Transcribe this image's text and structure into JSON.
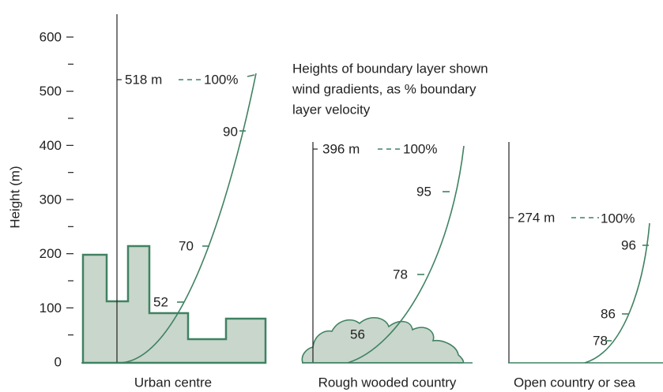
{
  "y_axis": {
    "title": "Height (m)",
    "ticks": [
      "600",
      "500",
      "400",
      "300",
      "200",
      "100",
      "0"
    ]
  },
  "note": [
    "Heights of boundary layer shown",
    "wind gradients, as % boundary",
    "layer velocity"
  ],
  "panels": [
    {
      "label": "Urban centre",
      "boundary_height": "518 m",
      "top_percent": "100%",
      "profile_labels": [
        "90",
        "70",
        "52"
      ]
    },
    {
      "label": "Rough wooded country",
      "boundary_height": "396 m",
      "top_percent": "100%",
      "profile_labels": [
        "95",
        "78",
        "56"
      ]
    },
    {
      "label": "Open country or sea",
      "boundary_height": "274 m",
      "top_percent": "100%",
      "profile_labels": [
        "96",
        "86",
        "78"
      ]
    }
  ]
}
